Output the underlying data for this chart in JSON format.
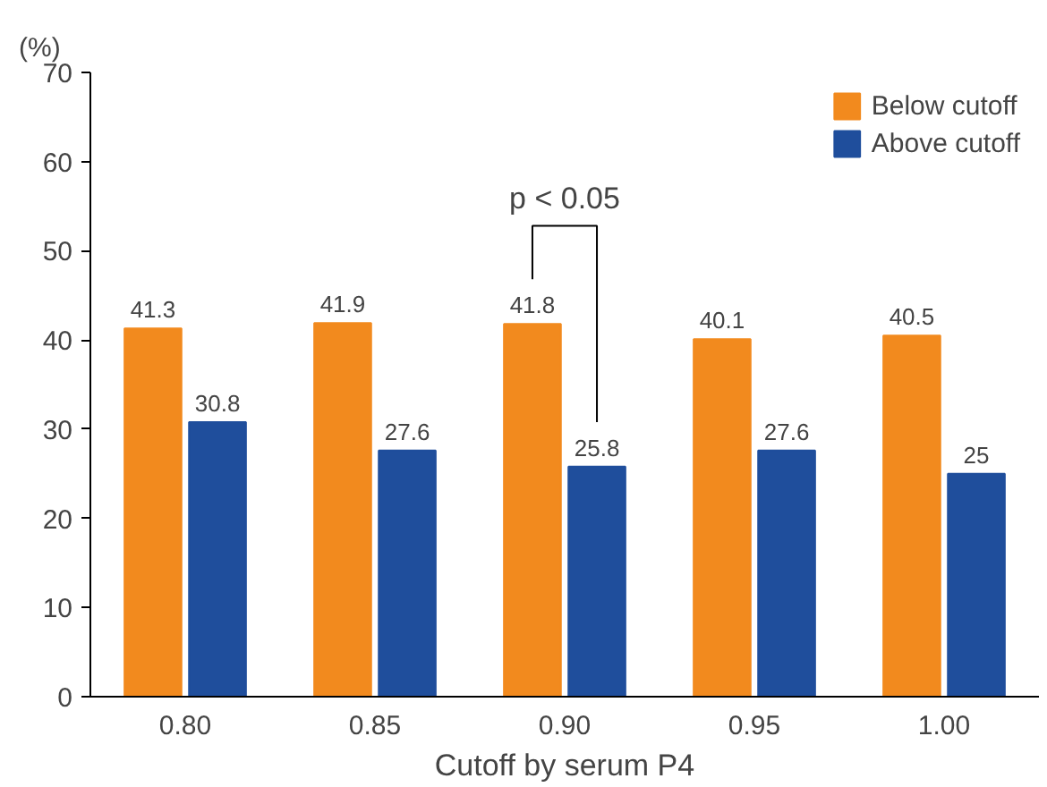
{
  "chart_data": {
    "type": "bar",
    "xlabel": "Cutoff by serum P4",
    "ylabel": "(%)",
    "categories": [
      "0.80",
      "0.85",
      "0.90",
      "0.95",
      "1.00"
    ],
    "series": [
      {
        "name": "Below cutoff",
        "color": "#f28a1e",
        "values": [
          41.3,
          41.9,
          41.8,
          40.1,
          40.5
        ]
      },
      {
        "name": "Above cutoff",
        "color": "#1f4e9c",
        "values": [
          30.8,
          27.6,
          25.8,
          27.6,
          25
        ]
      }
    ],
    "ylim": [
      0,
      70
    ],
    "yticks": [
      0,
      10,
      20,
      30,
      40,
      50,
      60,
      70
    ],
    "annotations": [
      "p < 0.05"
    ],
    "data_labels": true,
    "grid": false,
    "legend": "top right"
  }
}
